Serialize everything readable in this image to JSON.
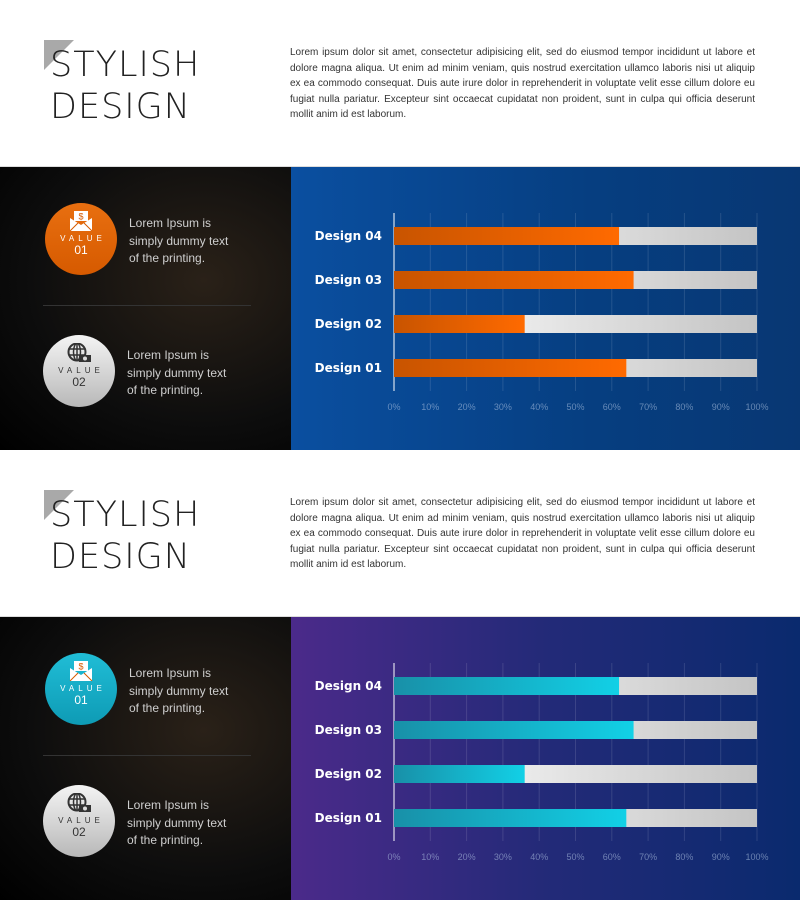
{
  "sections": [
    {
      "title_line1": "STYLISH",
      "title_line2": "DESIGN",
      "paragraph": "Lorem ipsum dolor sit amet, consectetur adipisicing elit, sed do eiusmod tempor incididunt ut labore et dolore magna aliqua. Ut enim ad minim veniam, quis nostrud exercitation ullamco laboris nisi ut aliquip ex ea commodo consequat. Duis aute irure dolor in reprehenderit in voluptate velit esse cillum dolore eu fugiat nulla pariatur. Excepteur sint occaecat cupidatat non proident, sunt in culpa qui officia deserunt mollit anim id est laborum.",
      "value1": {
        "label": "VALUE",
        "num": "01",
        "text": "Lorem Ipsum is simply dummy text of the printing.",
        "icon": "money-envelope-icon"
      },
      "value2": {
        "label": "VALUE",
        "num": "02",
        "text": "Lorem Ipsum is simply dummy text of the printing.",
        "icon": "globe-money-icon"
      },
      "accent": "#ff6a00",
      "accent_dark": "#c85400"
    },
    {
      "title_line1": "STYLISH",
      "title_line2": "DESIGN",
      "paragraph": "Lorem ipsum dolor sit amet, consectetur adipisicing elit, sed do eiusmod tempor incididunt ut labore et dolore magna aliqua. Ut enim ad minim veniam, quis nostrud exercitation ullamco laboris nisi ut aliquip ex ea commodo consequat. Duis aute irure dolor in reprehenderit in voluptate velit esse cillum dolore eu fugiat nulla pariatur. Excepteur sint occaecat cupidatat non proident, sunt in culpa qui officia deserunt mollit anim id est laborum.",
      "value1": {
        "label": "VALUE",
        "num": "01",
        "text": "Lorem Ipsum is simply dummy text of the printing.",
        "icon": "money-envelope-icon"
      },
      "value2": {
        "label": "VALUE",
        "num": "02",
        "text": "Lorem Ipsum is simply dummy text of the printing.",
        "icon": "globe-money-icon"
      },
      "accent": "#12d0e6",
      "accent_dark": "#1890a8"
    }
  ],
  "chart_data": [
    {
      "type": "bar",
      "orientation": "horizontal",
      "categories": [
        "Design 04",
        "Design 03",
        "Design 02",
        "Design 01"
      ],
      "values": [
        62,
        66,
        36,
        64
      ],
      "xlim": [
        0,
        100
      ],
      "xticks": [
        "0%",
        "10%",
        "20%",
        "30%",
        "40%",
        "50%",
        "60%",
        "70%",
        "80%",
        "90%",
        "100%"
      ],
      "grid": true,
      "title": "",
      "xlabel": "",
      "ylabel": ""
    },
    {
      "type": "bar",
      "orientation": "horizontal",
      "categories": [
        "Design 04",
        "Design 03",
        "Design 02",
        "Design 01"
      ],
      "values": [
        62,
        66,
        36,
        64
      ],
      "xlim": [
        0,
        100
      ],
      "xticks": [
        "0%",
        "10%",
        "20%",
        "30%",
        "40%",
        "50%",
        "60%",
        "70%",
        "80%",
        "90%",
        "100%"
      ],
      "grid": true,
      "title": "",
      "xlabel": "",
      "ylabel": ""
    }
  ]
}
